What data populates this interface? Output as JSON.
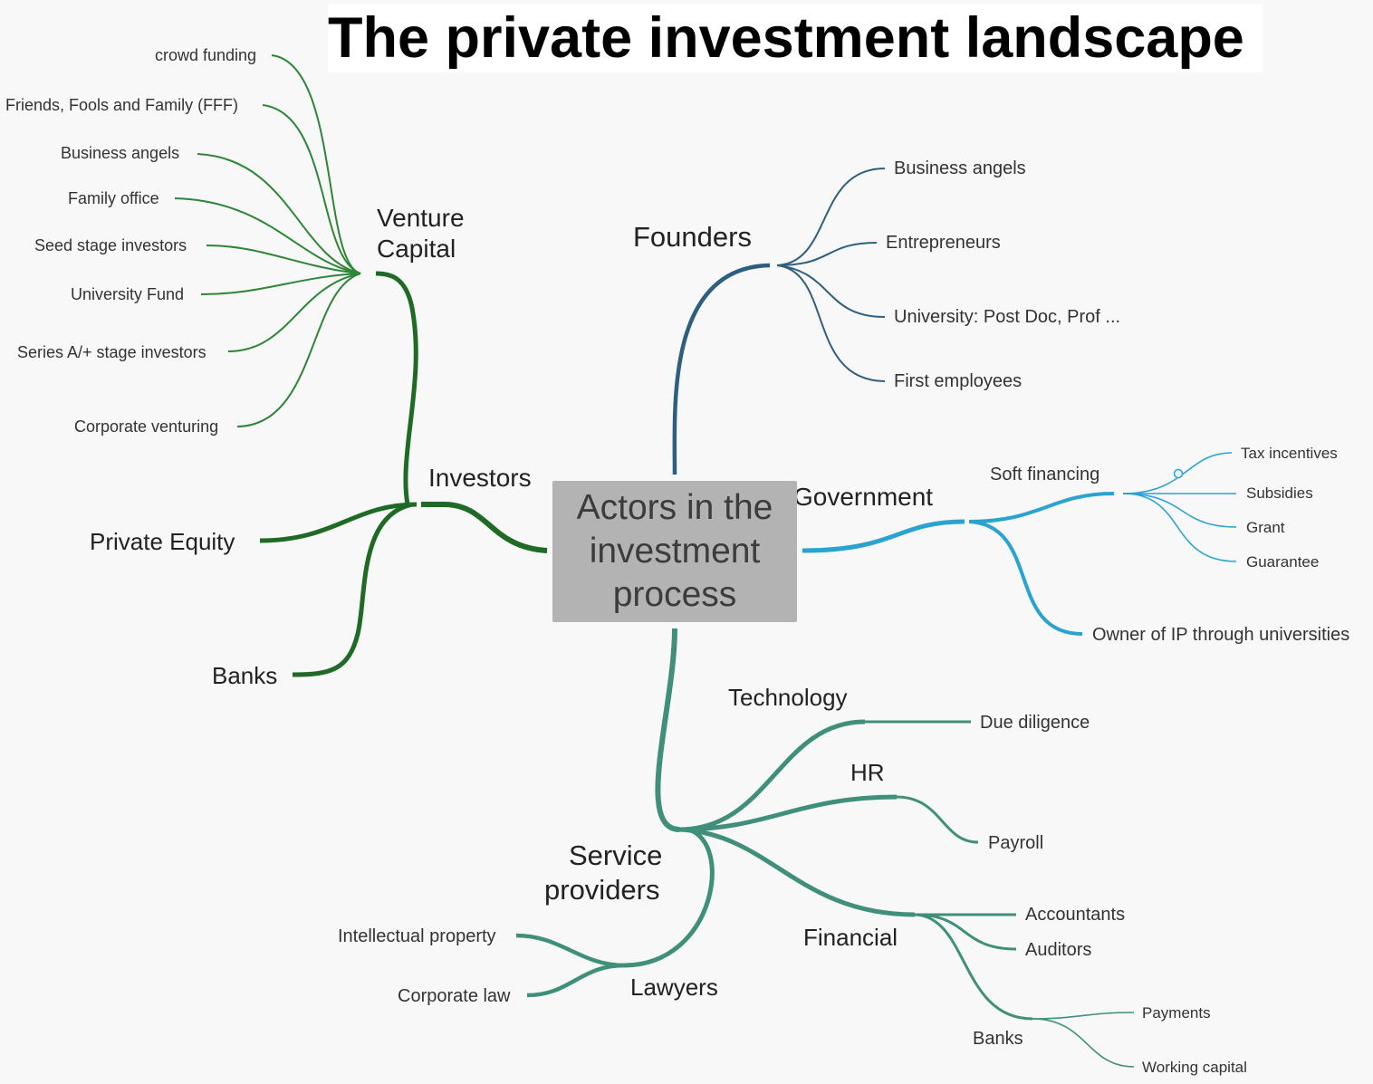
{
  "title": "The private investment landscape",
  "center": "Actors in the\ninvestment\nprocess",
  "colors": {
    "investors": "#1f6b26",
    "venture": "#2e8535",
    "founders": "#2f5f80",
    "government": "#2aa3d0",
    "service": "#3f8f7a"
  },
  "investors": {
    "label": "Investors",
    "venture_capital": {
      "label": "Venture Capital",
      "children": [
        "crowd funding",
        "Friends, Fools and Family (FFF)",
        "Business angels",
        "Family office",
        "Seed stage investors",
        "University Fund",
        "Series A/+ stage investors",
        "Corporate venturing"
      ]
    },
    "private_equity": "Private Equity",
    "banks": "Banks"
  },
  "founders": {
    "label": "Founders",
    "children": [
      "Business angels",
      "Entrepreneurs",
      "University: Post Doc, Prof ...",
      "First employees"
    ]
  },
  "government": {
    "label": "Government",
    "soft_financing": {
      "label": "Soft financing",
      "children": [
        "Tax incentives",
        "Subsidies",
        "Grant",
        "Guarantee"
      ]
    },
    "owner_ip": "Owner of IP through universities"
  },
  "service_providers": {
    "label": "Service providers",
    "technology": {
      "label": "Technology",
      "children": [
        "Due diligence"
      ]
    },
    "hr": {
      "label": "HR",
      "children": [
        "Payroll"
      ]
    },
    "financial": {
      "label": "Financial",
      "children": [
        "Accountants",
        "Auditors"
      ],
      "banks": {
        "label": "Banks",
        "children": [
          "Payments",
          "Working capital"
        ]
      }
    },
    "lawyers": {
      "label": "Lawyers",
      "children": [
        "Intellectual property",
        "Corporate law"
      ]
    }
  }
}
